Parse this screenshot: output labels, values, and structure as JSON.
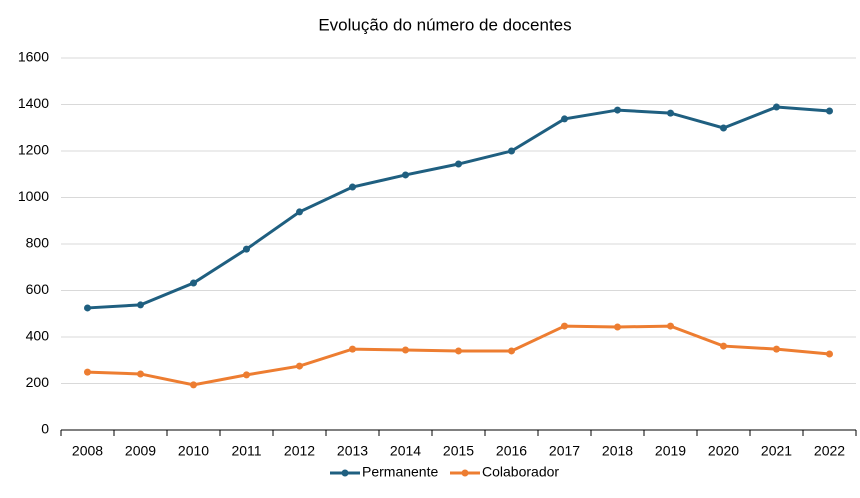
{
  "chart_data": {
    "type": "line",
    "title": "Evolução do número de docentes",
    "categories": [
      "2008",
      "2009",
      "2010",
      "2011",
      "2012",
      "2013",
      "2014",
      "2015",
      "2016",
      "2017",
      "2018",
      "2019",
      "2020",
      "2021",
      "2022"
    ],
    "series": [
      {
        "name": "Permanente",
        "color": "#1f5f80",
        "values": [
          525,
          538,
          632,
          778,
          938,
          1045,
          1097,
          1144,
          1200,
          1338,
          1376,
          1363,
          1299,
          1389,
          1372
        ]
      },
      {
        "name": "Colaborador",
        "color": "#ed7d31",
        "values": [
          249,
          241,
          194,
          237,
          275,
          348,
          344,
          340,
          340,
          447,
          443,
          447,
          361,
          348,
          327
        ]
      }
    ],
    "ylim": [
      0,
      1600
    ],
    "yticks": [
      0,
      200,
      400,
      600,
      800,
      1000,
      1200,
      1400,
      1600
    ],
    "grid": true,
    "legend": "bottom"
  }
}
